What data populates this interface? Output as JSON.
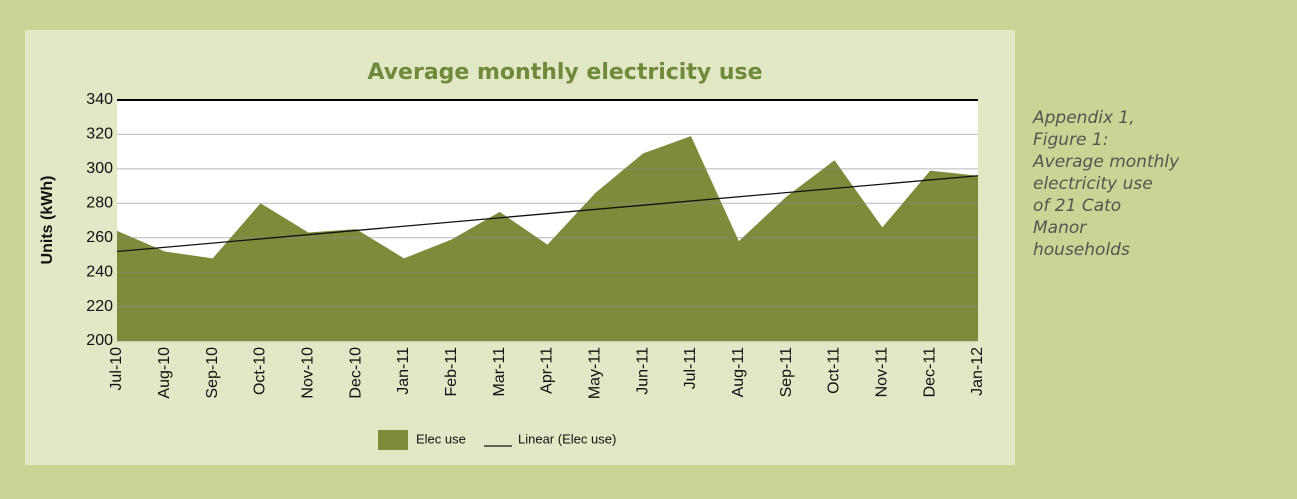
{
  "chart_data": {
    "type": "area",
    "title": "Average monthly electricity use",
    "y_label": "Units (kWh)",
    "categories": [
      "Jul-10",
      "Aug-10",
      "Sep-10",
      "Oct-10",
      "Nov-10",
      "Dec-10",
      "Jan-11",
      "Feb-11",
      "Mar-11",
      "Apr-11",
      "May-11",
      "Jun-11",
      "Jul-11",
      "Aug-11",
      "Sep-11",
      "Oct-11",
      "Nov-11",
      "Dec-11",
      "Jan-12"
    ],
    "series": [
      {
        "name": "Elec use",
        "color": "#7e8b3b",
        "values": [
          264,
          252,
          248,
          280,
          263,
          265,
          248,
          259,
          275,
          256,
          286,
          309,
          319,
          258,
          284,
          305,
          266,
          299,
          296
        ]
      }
    ],
    "trendline": {
      "name": "Linear (Elec use)",
      "color": "#111111",
      "start": 252,
      "end": 296
    },
    "ylim": [
      200,
      340
    ],
    "yticks": [
      200,
      220,
      240,
      260,
      280,
      300,
      320,
      340
    ],
    "grid": true
  },
  "caption": [
    "Appendix 1,",
    "Figure 1:",
    "Average monthly",
    "electricity use",
    "of 21 Cato",
    "Manor",
    "households"
  ]
}
